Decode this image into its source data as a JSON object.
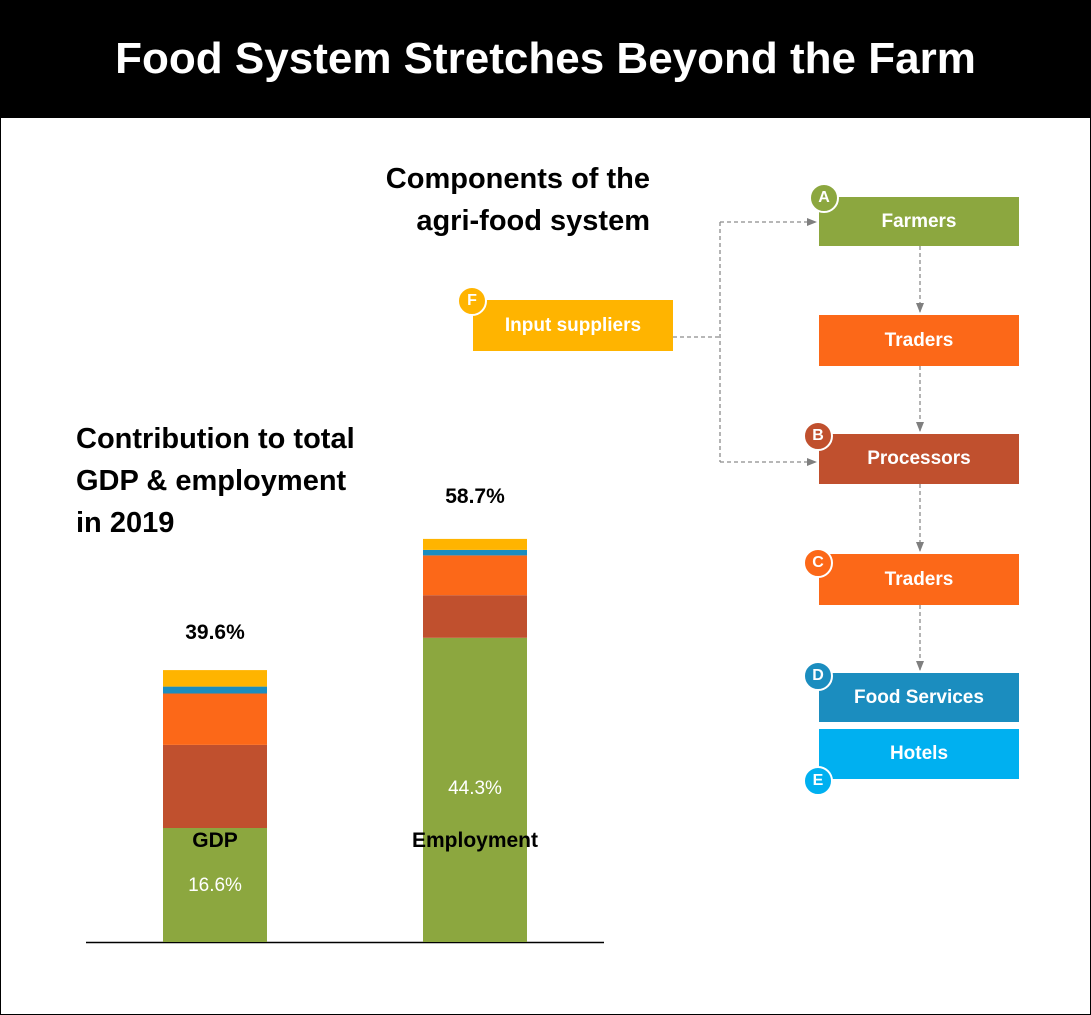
{
  "title": "Food System Stretches Beyond the Farm",
  "components_title_line1": "Components of the",
  "components_title_line2": "agri-food system",
  "contribution_title_line1": "Contribution to total",
  "contribution_title_line2": "GDP & employment",
  "contribution_title_line3": "in 2019",
  "colors": {
    "farmers": "#8ca73f",
    "processors": "#c0502e",
    "traders": "#fc6818",
    "food_services": "#1b8dbf",
    "hotels": "#00b0f0",
    "input_suppliers": "#ffb400"
  },
  "flow": {
    "input_suppliers": {
      "badge": "F",
      "label": "Input suppliers"
    },
    "farmers": {
      "badge": "A",
      "label": "Farmers"
    },
    "traders_1": {
      "label": "Traders"
    },
    "processors": {
      "badge": "B",
      "label": "Processors"
    },
    "traders_2": {
      "badge": "C",
      "label": "Traders"
    },
    "food_services": {
      "badge": "D",
      "label": "Food Services"
    },
    "hotels": {
      "badge": "E",
      "label": "Hotels"
    }
  },
  "chart_data": {
    "type": "bar",
    "stacked": true,
    "categories": [
      "GDP",
      "Employment"
    ],
    "totals": [
      "39.6%",
      "58.7%"
    ],
    "ylim": [
      0,
      60
    ],
    "series": [
      {
        "key": "farmers",
        "values": [
          16.6,
          44.3
        ],
        "labels": [
          "16.6%",
          "44.3%"
        ]
      },
      {
        "key": "processors",
        "values": [
          12.1,
          6.2
        ]
      },
      {
        "key": "traders",
        "values": [
          7.5,
          5.8
        ]
      },
      {
        "key": "food_services",
        "values": [
          1.0,
          0.8
        ]
      },
      {
        "key": "input_suppliers",
        "values": [
          2.4,
          1.6
        ]
      }
    ]
  }
}
